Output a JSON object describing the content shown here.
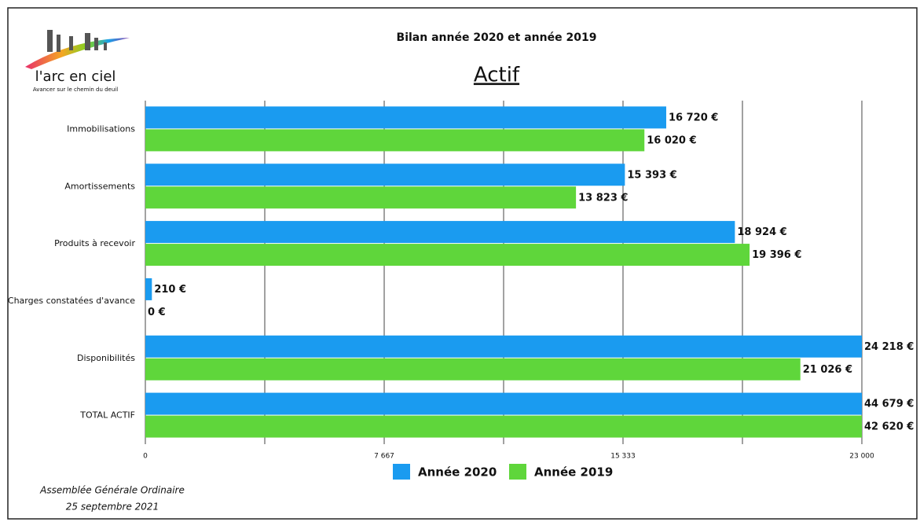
{
  "logo": {
    "name": "l'arc en ciel",
    "tagline": "Avancer sur le chemin du deuil"
  },
  "chart_data": {
    "type": "hbar",
    "title": "Bilan année 2020 et année 2019",
    "subtitle": "Actif",
    "categories": [
      "Immobilisations",
      "Amortissements",
      "Produits à recevoir",
      "Charges constatées d'avance",
      "Disponibilités",
      "TOTAL ACTIF"
    ],
    "series": [
      {
        "name": "Année 2020",
        "color": "#1a9bf0",
        "values": [
          16720,
          15393,
          18924,
          210,
          24218,
          44679
        ],
        "value_labels": [
          "16 720 €",
          "15 393 €",
          "18 924 €",
          "210 €",
          "24 218 €",
          "44 679 €"
        ]
      },
      {
        "name": "Année 2019",
        "color": "#5fd63b",
        "values": [
          16020,
          13823,
          19396,
          0,
          21026,
          42620
        ],
        "value_labels": [
          "16 020 €",
          "13 823 €",
          "19 396 €",
          "0 €",
          "21 026 €",
          "42 620 €"
        ]
      }
    ],
    "xlim": [
      0,
      23000
    ],
    "xticks": [
      0,
      {
        "value": 7667,
        "label": "7 667"
      },
      {
        "value": 15333,
        "label": "15 333"
      },
      {
        "value": 23000,
        "label": "23 000"
      }
    ],
    "grid": true,
    "minor_grid": true,
    "legend": "bottom"
  },
  "footer": [
    "Assemblée Générale Ordinaire",
    "25 septembre 2021"
  ]
}
